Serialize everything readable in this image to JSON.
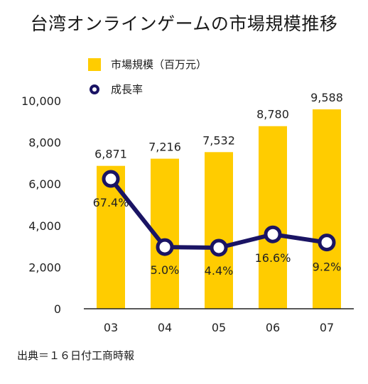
{
  "title": "台湾オンラインゲームの市場規模推移",
  "legend": {
    "bar_label": "市場規模（百万元）",
    "line_label": "成長率"
  },
  "source": "出典＝１６日付工商時報",
  "colors": {
    "bar": "#FFCC00",
    "line": "#1a1464",
    "axis": "#222222"
  },
  "chart_data": {
    "type": "bar",
    "categories": [
      "03",
      "04",
      "05",
      "06",
      "07"
    ],
    "series": [
      {
        "name": "市場規模（百万元）",
        "type": "bar",
        "values": [
          6871,
          7216,
          7532,
          8780,
          9588
        ],
        "labels": [
          "6,871",
          "7,216",
          "7,532",
          "8,780",
          "9,588"
        ]
      },
      {
        "name": "成長率",
        "type": "line",
        "values": [
          67.4,
          5.0,
          4.4,
          16.6,
          9.2
        ],
        "labels": [
          "67.4%",
          "5.0%",
          "4.4%",
          "16.6%",
          "9.2%"
        ]
      }
    ],
    "yticks": [
      "0",
      "2,000",
      "4,000",
      "6,000",
      "8,000",
      "10,000"
    ],
    "ylim": [
      0,
      10000
    ]
  }
}
